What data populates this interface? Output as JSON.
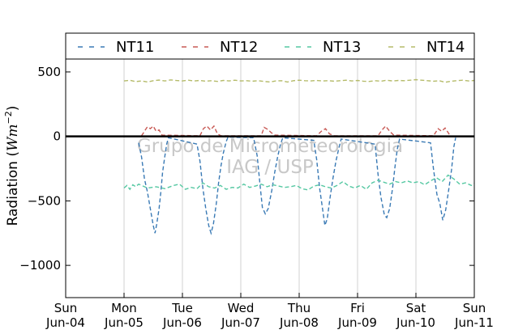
{
  "chart_data": {
    "type": "line",
    "title": "",
    "xlabel": "",
    "ylabel_prefix": "Radiation (",
    "ylabel_unit_base": "Wm",
    "ylabel_unit_exp": "−2",
    "ylabel_suffix": ")",
    "ylim": [
      -1250,
      600
    ],
    "xlim_days": [
      0,
      7
    ],
    "x_tick_labels": [
      {
        "day": "Sun",
        "date": "Jun-04"
      },
      {
        "day": "Mon",
        "date": "Jun-05"
      },
      {
        "day": "Tue",
        "date": "Jun-06"
      },
      {
        "day": "Wed",
        "date": "Jun-07"
      },
      {
        "day": "Thu",
        "date": "Jun-08"
      },
      {
        "day": "Fri",
        "date": "Jun-09"
      },
      {
        "day": "Sat",
        "date": "Jun-10"
      },
      {
        "day": "Sun",
        "date": "Jun-11"
      }
    ],
    "y_ticks": [
      {
        "value": 500,
        "label": "500"
      },
      {
        "value": 0,
        "label": "0"
      },
      {
        "value": -500,
        "label": "−500"
      },
      {
        "value": -1000,
        "label": "−1000"
      }
    ],
    "grid": "vertical",
    "zero_line": true,
    "legend_position": "top, above plot",
    "watermark": [
      "Grupo de Micrometeorologia",
      "IAG / USP"
    ],
    "series": [
      {
        "name": "NT11",
        "color": "#3a7ab5",
        "points": [
          [
            1.25,
            -50
          ],
          [
            1.3,
            -160
          ],
          [
            1.35,
            -330
          ],
          [
            1.4,
            -430
          ],
          [
            1.45,
            -560
          ],
          [
            1.5,
            -690
          ],
          [
            1.53,
            -750
          ],
          [
            1.56,
            -680
          ],
          [
            1.6,
            -560
          ],
          [
            1.63,
            -430
          ],
          [
            1.66,
            -280
          ],
          [
            1.7,
            -150
          ],
          [
            1.73,
            -60
          ],
          [
            1.76,
            -10
          ],
          [
            2.25,
            -60
          ],
          [
            2.3,
            -190
          ],
          [
            2.35,
            -400
          ],
          [
            2.4,
            -560
          ],
          [
            2.45,
            -690
          ],
          [
            2.49,
            -750
          ],
          [
            2.53,
            -680
          ],
          [
            2.58,
            -520
          ],
          [
            2.62,
            -360
          ],
          [
            2.66,
            -230
          ],
          [
            2.7,
            -130
          ],
          [
            2.75,
            -40
          ],
          [
            2.78,
            -5
          ],
          [
            3.22,
            -10
          ],
          [
            3.28,
            -150
          ],
          [
            3.33,
            -380
          ],
          [
            3.37,
            -550
          ],
          [
            3.42,
            -600
          ],
          [
            3.47,
            -560
          ],
          [
            3.53,
            -420
          ],
          [
            3.58,
            -280
          ],
          [
            3.63,
            -160
          ],
          [
            3.68,
            -60
          ],
          [
            3.72,
            -10
          ],
          [
            4.25,
            -30
          ],
          [
            4.3,
            -180
          ],
          [
            4.35,
            -400
          ],
          [
            4.4,
            -560
          ],
          [
            4.44,
            -690
          ],
          [
            4.48,
            -640
          ],
          [
            4.53,
            -470
          ],
          [
            4.58,
            -320
          ],
          [
            4.63,
            -190
          ],
          [
            4.68,
            -90
          ],
          [
            4.72,
            -20
          ],
          [
            5.3,
            -60
          ],
          [
            5.35,
            -290
          ],
          [
            5.4,
            -470
          ],
          [
            5.46,
            -610
          ],
          [
            5.5,
            -630
          ],
          [
            5.55,
            -560
          ],
          [
            5.6,
            -400
          ],
          [
            5.64,
            -240
          ],
          [
            5.68,
            -100
          ],
          [
            5.72,
            -20
          ],
          [
            6.25,
            -50
          ],
          [
            6.3,
            -250
          ],
          [
            6.36,
            -450
          ],
          [
            6.41,
            -520
          ],
          [
            6.46,
            -650
          ],
          [
            6.51,
            -570
          ],
          [
            6.56,
            -420
          ],
          [
            6.61,
            -260
          ],
          [
            6.65,
            -80
          ],
          [
            6.68,
            -10
          ]
        ]
      },
      {
        "name": "NT12",
        "color": "#c85a55",
        "points": [
          [
            1.3,
            5
          ],
          [
            1.35,
            40
          ],
          [
            1.4,
            75
          ],
          [
            1.45,
            60
          ],
          [
            1.5,
            80
          ],
          [
            1.55,
            40
          ],
          [
            1.6,
            50
          ],
          [
            1.65,
            10
          ],
          [
            2.3,
            5
          ],
          [
            2.36,
            60
          ],
          [
            2.42,
            80
          ],
          [
            2.48,
            50
          ],
          [
            2.54,
            80
          ],
          [
            2.6,
            20
          ],
          [
            2.66,
            5
          ],
          [
            3.35,
            5
          ],
          [
            3.4,
            70
          ],
          [
            3.46,
            55
          ],
          [
            3.52,
            30
          ],
          [
            3.58,
            10
          ],
          [
            4.3,
            5
          ],
          [
            4.38,
            40
          ],
          [
            4.45,
            60
          ],
          [
            4.52,
            20
          ],
          [
            4.6,
            5
          ],
          [
            5.35,
            5
          ],
          [
            5.42,
            50
          ],
          [
            5.48,
            80
          ],
          [
            5.55,
            40
          ],
          [
            5.62,
            10
          ],
          [
            6.3,
            5
          ],
          [
            6.38,
            60
          ],
          [
            6.44,
            40
          ],
          [
            6.5,
            65
          ],
          [
            6.58,
            10
          ]
        ]
      },
      {
        "name": "NT13",
        "color": "#55c8a2",
        "points": [
          [
            1.0,
            -400
          ],
          [
            1.05,
            -380
          ],
          [
            1.1,
            -410
          ],
          [
            1.15,
            -375
          ],
          [
            1.2,
            -390
          ],
          [
            1.25,
            -370
          ],
          [
            1.3,
            -380
          ],
          [
            1.4,
            -400
          ],
          [
            1.55,
            -390
          ],
          [
            1.7,
            -405
          ],
          [
            1.85,
            -380
          ],
          [
            1.95,
            -370
          ],
          [
            2.05,
            -410
          ],
          [
            2.15,
            -395
          ],
          [
            2.25,
            -405
          ],
          [
            2.35,
            -360
          ],
          [
            2.45,
            -390
          ],
          [
            2.55,
            -400
          ],
          [
            2.65,
            -380
          ],
          [
            2.75,
            -410
          ],
          [
            2.85,
            -395
          ],
          [
            2.95,
            -400
          ],
          [
            3.05,
            -370
          ],
          [
            3.15,
            -395
          ],
          [
            3.25,
            -385
          ],
          [
            3.35,
            -370
          ],
          [
            3.45,
            -390
          ],
          [
            3.55,
            -375
          ],
          [
            3.65,
            -385
          ],
          [
            3.75,
            -395
          ],
          [
            3.85,
            -390
          ],
          [
            3.95,
            -380
          ],
          [
            4.05,
            -405
          ],
          [
            4.15,
            -415
          ],
          [
            4.25,
            -385
          ],
          [
            4.35,
            -375
          ],
          [
            4.45,
            -390
          ],
          [
            4.55,
            -400
          ],
          [
            4.65,
            -380
          ],
          [
            4.75,
            -350
          ],
          [
            4.85,
            -385
          ],
          [
            4.95,
            -400
          ],
          [
            5.05,
            -380
          ],
          [
            5.15,
            -410
          ],
          [
            5.25,
            -360
          ],
          [
            5.35,
            -340
          ],
          [
            5.45,
            -355
          ],
          [
            5.55,
            -370
          ],
          [
            5.65,
            -350
          ],
          [
            5.75,
            -360
          ],
          [
            5.85,
            -345
          ],
          [
            5.95,
            -360
          ],
          [
            6.05,
            -350
          ],
          [
            6.15,
            -375
          ],
          [
            6.25,
            -345
          ],
          [
            6.35,
            -320
          ],
          [
            6.45,
            -350
          ],
          [
            6.55,
            -300
          ],
          [
            6.65,
            -330
          ],
          [
            6.75,
            -370
          ],
          [
            6.85,
            -360
          ],
          [
            6.95,
            -380
          ],
          [
            7.0,
            -365
          ]
        ]
      },
      {
        "name": "NT14",
        "color": "#b5bb6a",
        "points": [
          [
            1.0,
            430
          ],
          [
            1.1,
            435
          ],
          [
            1.2,
            425
          ],
          [
            1.3,
            430
          ],
          [
            1.4,
            422
          ],
          [
            1.5,
            432
          ],
          [
            1.6,
            437
          ],
          [
            1.7,
            430
          ],
          [
            1.8,
            438
          ],
          [
            1.9,
            433
          ],
          [
            2.0,
            430
          ],
          [
            2.1,
            436
          ],
          [
            2.2,
            430
          ],
          [
            2.3,
            434
          ],
          [
            2.4,
            428
          ],
          [
            2.5,
            432
          ],
          [
            2.6,
            426
          ],
          [
            2.7,
            434
          ],
          [
            2.8,
            430
          ],
          [
            2.9,
            436
          ],
          [
            3.0,
            430
          ],
          [
            3.1,
            432
          ],
          [
            3.2,
            428
          ],
          [
            3.3,
            432
          ],
          [
            3.4,
            426
          ],
          [
            3.5,
            422
          ],
          [
            3.6,
            430
          ],
          [
            3.7,
            432
          ],
          [
            3.8,
            422
          ],
          [
            3.9,
            432
          ],
          [
            4.0,
            436
          ],
          [
            4.1,
            432
          ],
          [
            4.2,
            430
          ],
          [
            4.3,
            434
          ],
          [
            4.4,
            430
          ],
          [
            4.5,
            432
          ],
          [
            4.6,
            428
          ],
          [
            4.7,
            432
          ],
          [
            4.8,
            436
          ],
          [
            4.9,
            430
          ],
          [
            5.0,
            434
          ],
          [
            5.1,
            428
          ],
          [
            5.2,
            426
          ],
          [
            5.3,
            432
          ],
          [
            5.4,
            428
          ],
          [
            5.5,
            436
          ],
          [
            5.6,
            430
          ],
          [
            5.7,
            434
          ],
          [
            5.8,
            432
          ],
          [
            5.9,
            436
          ],
          [
            6.0,
            440
          ],
          [
            6.1,
            436
          ],
          [
            6.2,
            432
          ],
          [
            6.3,
            428
          ],
          [
            6.4,
            432
          ],
          [
            6.5,
            420
          ],
          [
            6.6,
            428
          ],
          [
            6.7,
            432
          ],
          [
            6.8,
            436
          ],
          [
            6.9,
            430
          ],
          [
            7.0,
            434
          ]
        ]
      }
    ]
  }
}
